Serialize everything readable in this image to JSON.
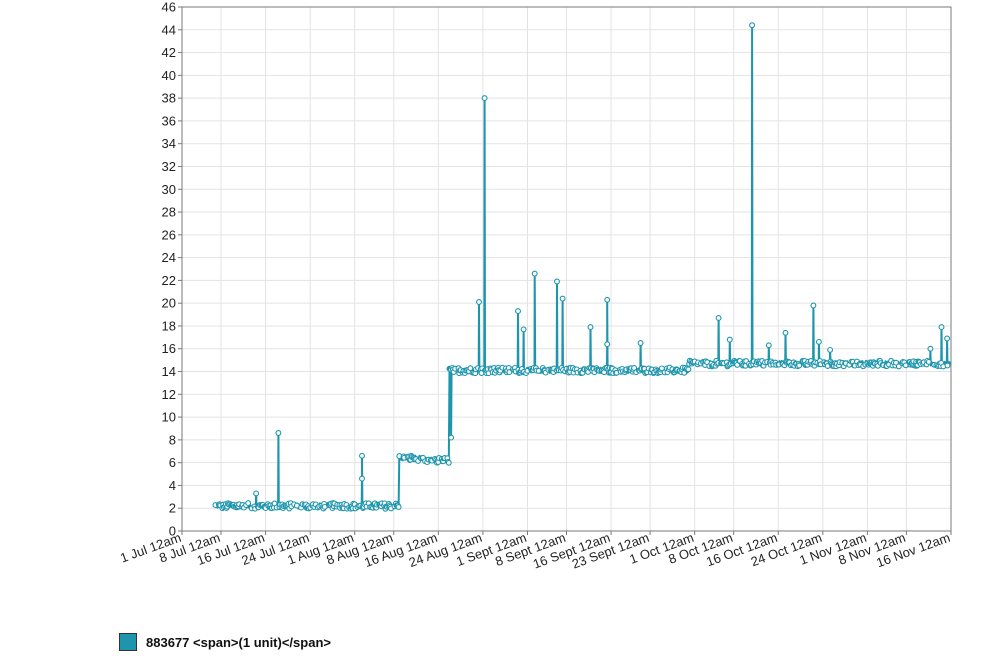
{
  "chart_data": {
    "type": "line",
    "x_axis": {
      "kind": "date",
      "range": [
        "2023-07-01",
        "2023-11-16"
      ],
      "tick_labels": [
        "1 Jul 12am",
        "8 Jul 12am",
        "16 Jul 12am",
        "24 Jul 12am",
        "1 Aug 12am",
        "8 Aug 12am",
        "16 Aug 12am",
        "24 Aug 12am",
        "1 Sept 12am",
        "8 Sept 12am",
        "16 Sept 12am",
        "23 Sept 12am",
        "1 Oct 12am",
        "8 Oct 12am",
        "16 Oct 12am",
        "24 Oct 12am",
        "1 Nov 12am",
        "8 Nov 12am",
        "16 Nov 12am"
      ],
      "tick_dates": [
        "2023-07-01",
        "2023-07-08",
        "2023-07-16",
        "2023-07-24",
        "2023-08-01",
        "2023-08-08",
        "2023-08-16",
        "2023-08-24",
        "2023-09-01",
        "2023-09-08",
        "2023-09-16",
        "2023-09-23",
        "2023-10-01",
        "2023-10-08",
        "2023-10-16",
        "2023-10-24",
        "2023-11-01",
        "2023-11-08",
        "2023-11-16"
      ]
    },
    "y_axis": {
      "range": [
        0,
        46
      ],
      "tick_labels": [
        "0",
        "2",
        "4",
        "6",
        "8",
        "10",
        "12",
        "14",
        "16",
        "18",
        "20",
        "22",
        "24",
        "26",
        "28",
        "30",
        "32",
        "34",
        "36",
        "38",
        "40",
        "42",
        "44",
        "46"
      ]
    },
    "grid": true,
    "legend_position": "bottom-left",
    "series": [
      {
        "name": "883677 <span>(1 unit)</span>",
        "color": "#1e95ad",
        "baseline_segments": [
          {
            "from": "2023-07-07",
            "to": "2023-08-09",
            "value": 2.2
          },
          {
            "from": "2023-08-09",
            "to": "2023-08-13",
            "value": 6.4
          },
          {
            "from": "2023-08-13",
            "to": "2023-08-18",
            "value": 6.2
          },
          {
            "from": "2023-08-18",
            "to": "2023-09-30",
            "value": 14.1
          },
          {
            "from": "2023-09-30",
            "to": "2023-11-16",
            "value": 14.7
          }
        ],
        "spikes": [
          {
            "x": "2023-07-14",
            "y": 3.3
          },
          {
            "x": "2023-07-18",
            "y": 8.6
          },
          {
            "x": "2023-08-02",
            "y": 6.6
          },
          {
            "x": "2023-08-02",
            "y": 4.6
          },
          {
            "x": "2023-08-18",
            "y": 8.2
          },
          {
            "x": "2023-08-23",
            "y": 20.1
          },
          {
            "x": "2023-08-24",
            "y": 38.0
          },
          {
            "x": "2023-08-30",
            "y": 19.3
          },
          {
            "x": "2023-08-31",
            "y": 17.7
          },
          {
            "x": "2023-09-02",
            "y": 22.6
          },
          {
            "x": "2023-09-06",
            "y": 21.9
          },
          {
            "x": "2023-09-07",
            "y": 20.4
          },
          {
            "x": "2023-09-12",
            "y": 17.9
          },
          {
            "x": "2023-09-15",
            "y": 20.3
          },
          {
            "x": "2023-09-15",
            "y": 16.4
          },
          {
            "x": "2023-09-21",
            "y": 16.5
          },
          {
            "x": "2023-10-05",
            "y": 18.7
          },
          {
            "x": "2023-10-07",
            "y": 16.8
          },
          {
            "x": "2023-10-11",
            "y": 44.4
          },
          {
            "x": "2023-10-14",
            "y": 16.3
          },
          {
            "x": "2023-10-17",
            "y": 17.4
          },
          {
            "x": "2023-10-22",
            "y": 19.8
          },
          {
            "x": "2023-10-23",
            "y": 16.6
          },
          {
            "x": "2023-10-25",
            "y": 15.9
          },
          {
            "x": "2023-11-12",
            "y": 16.0
          },
          {
            "x": "2023-11-14",
            "y": 17.9
          },
          {
            "x": "2023-11-15",
            "y": 16.9
          }
        ]
      }
    ]
  }
}
